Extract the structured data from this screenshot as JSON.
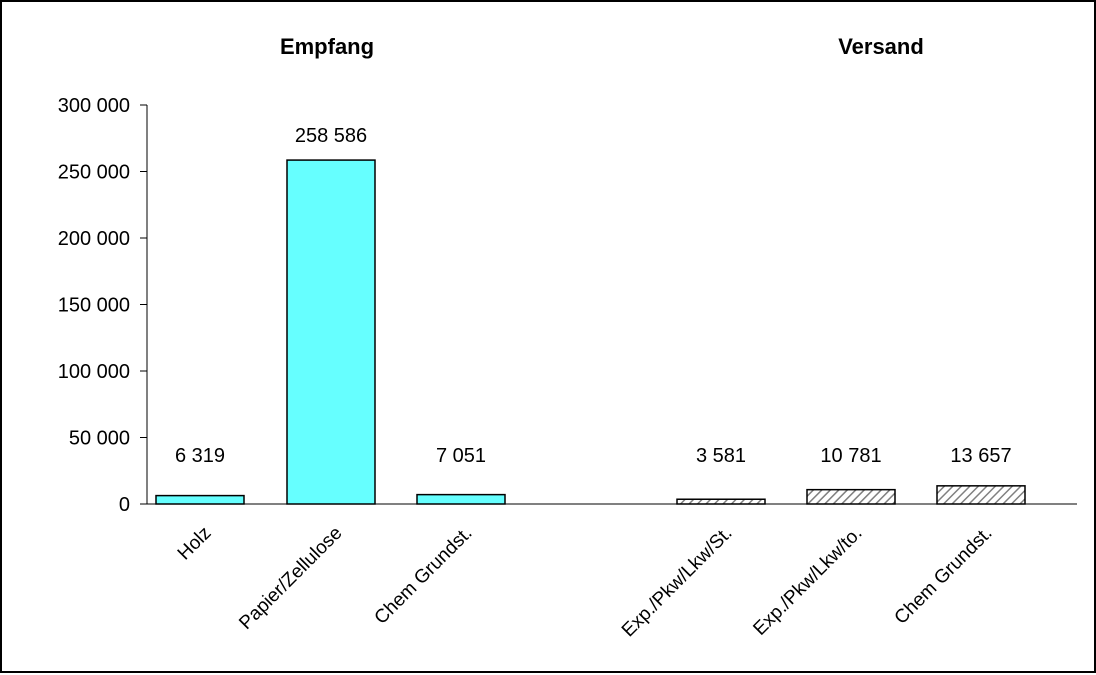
{
  "chart_data": {
    "type": "bar",
    "groups": [
      {
        "title": "Empfang",
        "pattern": "solid",
        "categories": [
          "Holz",
          "Papier/Zellulose",
          "Chem Grundst."
        ],
        "values": [
          6319,
          258586,
          7051
        ],
        "labels": [
          "6 319",
          "258 586",
          "7 051"
        ]
      },
      {
        "title": "Versand",
        "pattern": "hatched",
        "categories": [
          "Exp./Pkw/Lkw/St.",
          "Exp./Pkw/Lkw/to.",
          "Chem Grundst."
        ],
        "values": [
          3581,
          10781,
          13657
        ],
        "labels": [
          "3 581",
          "10 781",
          "13 657"
        ]
      }
    ],
    "y_ticks": [
      "0",
      "50 000",
      "100 000",
      "150 000",
      "200 000",
      "250 000",
      "300 000"
    ],
    "y_tick_values": [
      0,
      50000,
      100000,
      150000,
      200000,
      250000,
      300000
    ],
    "ylim": [
      0,
      300000
    ],
    "grid": false,
    "legend": "none",
    "colors": {
      "empfang_fill": "#66FFFF",
      "versand_hatch": "#808080",
      "border": "#000000"
    }
  }
}
